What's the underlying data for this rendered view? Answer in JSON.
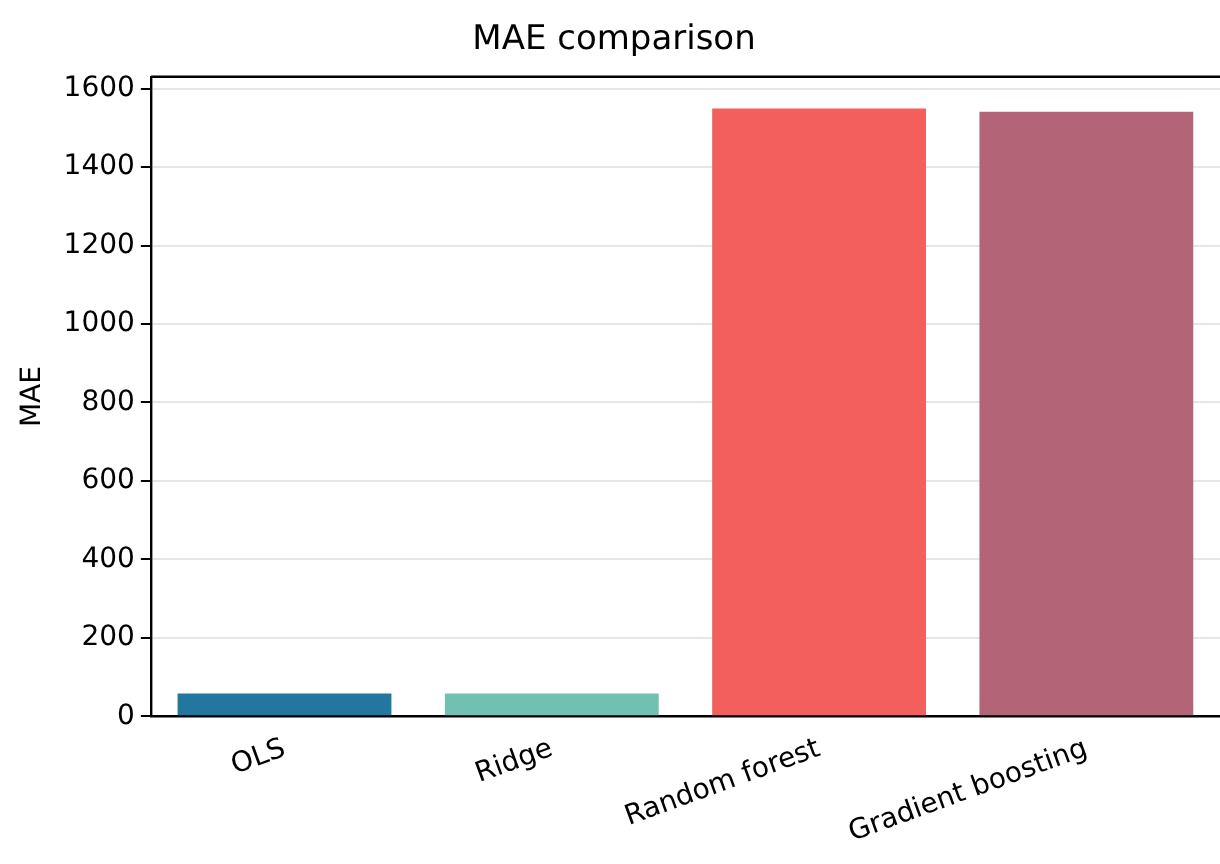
{
  "chart_data": {
    "type": "bar",
    "title": "MAE comparison",
    "ylabel": "MAE",
    "categories": [
      "OLS",
      "Ridge",
      "Random forest",
      "Gradient boosting"
    ],
    "values": [
      58,
      58,
      1549,
      1541
    ],
    "colors": [
      "#21779f",
      "#72c1b0",
      "#f25f5c",
      "#b36477"
    ],
    "ylim": [
      0,
      1630
    ],
    "yticks": [
      0,
      200,
      400,
      600,
      800,
      1000,
      1200,
      1400,
      1600
    ],
    "grid": "y",
    "legend": false
  }
}
